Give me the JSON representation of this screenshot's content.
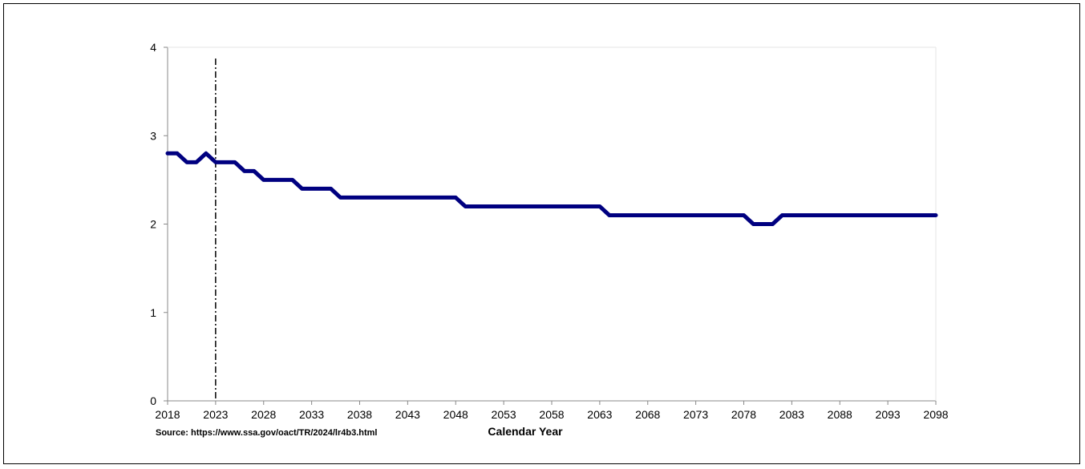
{
  "chart_data": {
    "type": "line",
    "title": "",
    "xlabel": "Calendar Year",
    "ylabel": "",
    "source": "Source: https://www.ssa.gov/oact/TR/2024/lr4b3.html",
    "xlim": [
      2018,
      2098
    ],
    "ylim": [
      0,
      4
    ],
    "x_ticks": [
      2018,
      2023,
      2028,
      2033,
      2038,
      2043,
      2048,
      2053,
      2058,
      2063,
      2068,
      2073,
      2078,
      2083,
      2088,
      2093,
      2098
    ],
    "y_ticks": [
      0,
      1,
      2,
      3,
      4
    ],
    "grid": false,
    "vertical_marker_x": 2023,
    "line_color": "#000080",
    "series": [
      {
        "points": [
          [
            2018,
            2.8
          ],
          [
            2019,
            2.8
          ],
          [
            2020,
            2.7
          ],
          [
            2021,
            2.7
          ],
          [
            2022,
            2.8
          ],
          [
            2023,
            2.7
          ],
          [
            2024,
            2.7
          ],
          [
            2025,
            2.7
          ],
          [
            2026,
            2.6
          ],
          [
            2027,
            2.6
          ],
          [
            2028,
            2.5
          ],
          [
            2029,
            2.5
          ],
          [
            2030,
            2.5
          ],
          [
            2031,
            2.5
          ],
          [
            2032,
            2.4
          ],
          [
            2033,
            2.4
          ],
          [
            2034,
            2.4
          ],
          [
            2035,
            2.4
          ],
          [
            2036,
            2.3
          ],
          [
            2037,
            2.3
          ],
          [
            2038,
            2.3
          ],
          [
            2039,
            2.3
          ],
          [
            2040,
            2.3
          ],
          [
            2041,
            2.3
          ],
          [
            2042,
            2.3
          ],
          [
            2043,
            2.3
          ],
          [
            2044,
            2.3
          ],
          [
            2045,
            2.3
          ],
          [
            2046,
            2.3
          ],
          [
            2047,
            2.3
          ],
          [
            2048,
            2.3
          ],
          [
            2049,
            2.2
          ],
          [
            2050,
            2.2
          ],
          [
            2051,
            2.2
          ],
          [
            2052,
            2.2
          ],
          [
            2053,
            2.2
          ],
          [
            2054,
            2.2
          ],
          [
            2055,
            2.2
          ],
          [
            2056,
            2.2
          ],
          [
            2057,
            2.2
          ],
          [
            2058,
            2.2
          ],
          [
            2059,
            2.2
          ],
          [
            2060,
            2.2
          ],
          [
            2061,
            2.2
          ],
          [
            2062,
            2.2
          ],
          [
            2063,
            2.2
          ],
          [
            2064,
            2.1
          ],
          [
            2065,
            2.1
          ],
          [
            2066,
            2.1
          ],
          [
            2067,
            2.1
          ],
          [
            2068,
            2.1
          ],
          [
            2069,
            2.1
          ],
          [
            2070,
            2.1
          ],
          [
            2071,
            2.1
          ],
          [
            2072,
            2.1
          ],
          [
            2073,
            2.1
          ],
          [
            2074,
            2.1
          ],
          [
            2075,
            2.1
          ],
          [
            2076,
            2.1
          ],
          [
            2077,
            2.1
          ],
          [
            2078,
            2.1
          ],
          [
            2079,
            2.0
          ],
          [
            2080,
            2.0
          ],
          [
            2081,
            2.0
          ],
          [
            2082,
            2.1
          ],
          [
            2083,
            2.1
          ],
          [
            2084,
            2.1
          ],
          [
            2085,
            2.1
          ],
          [
            2086,
            2.1
          ],
          [
            2087,
            2.1
          ],
          [
            2088,
            2.1
          ],
          [
            2089,
            2.1
          ],
          [
            2090,
            2.1
          ],
          [
            2091,
            2.1
          ],
          [
            2092,
            2.1
          ],
          [
            2093,
            2.1
          ],
          [
            2094,
            2.1
          ],
          [
            2095,
            2.1
          ],
          [
            2096,
            2.1
          ],
          [
            2097,
            2.1
          ],
          [
            2098,
            2.1
          ]
        ]
      }
    ]
  }
}
